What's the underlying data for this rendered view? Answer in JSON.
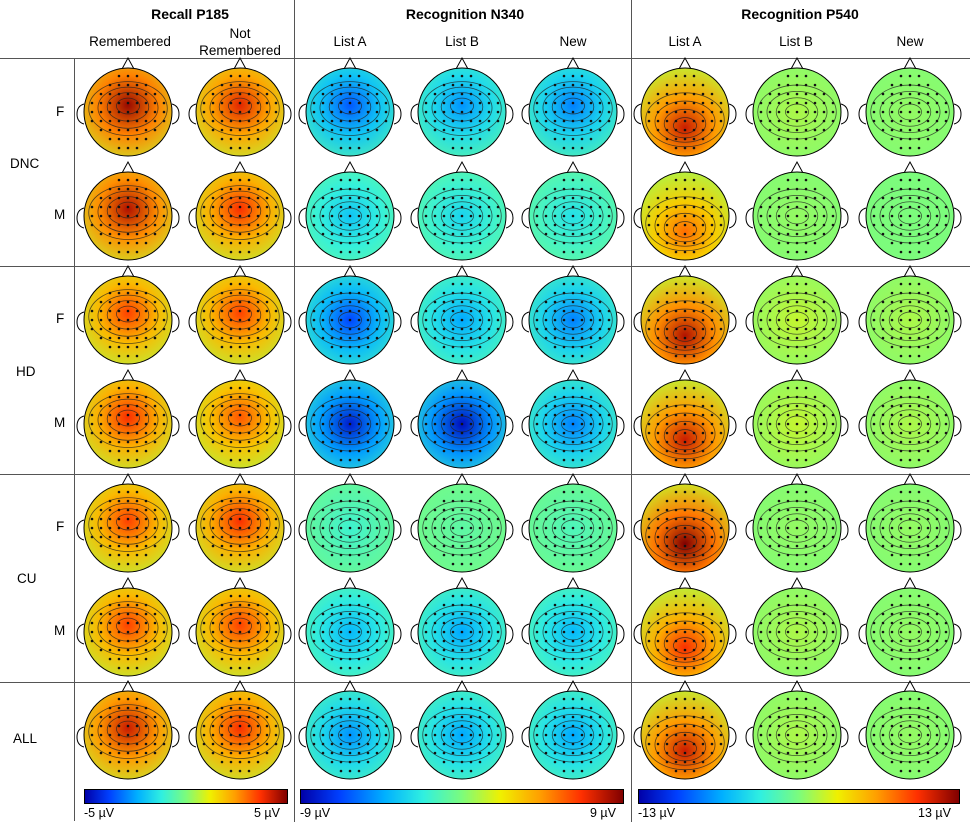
{
  "panels": [
    {
      "title": "Recall P185",
      "columns": [
        "Remembered",
        "Not\nRemembered"
      ],
      "colorbar": {
        "min_label": "-5 µV",
        "max_label": "5 µV",
        "min": -5,
        "max": 5
      }
    },
    {
      "title": "Recognition N340",
      "columns": [
        "List A",
        "List B",
        "New"
      ],
      "colorbar": {
        "min_label": "-9 µV",
        "max_label": "9 µV",
        "min": -9,
        "max": 9
      }
    },
    {
      "title": "Recognition P540",
      "columns": [
        "List A",
        "List B",
        "New"
      ],
      "colorbar": {
        "min_label": "-13 µV",
        "max_label": "13 µV",
        "min": -13,
        "max": 13
      }
    }
  ],
  "groups": [
    {
      "label": "DNC",
      "conditions": [
        "F",
        "M"
      ]
    },
    {
      "label": "HD",
      "conditions": [
        "F",
        "M"
      ]
    },
    {
      "label": "CU",
      "conditions": [
        "F",
        "M"
      ]
    },
    {
      "label": "ALL",
      "conditions": [
        ""
      ]
    }
  ],
  "maps": {
    "columns": [
      {
        "panel": 0,
        "name": "Remembered"
      },
      {
        "panel": 0,
        "name": "Not Remembered"
      },
      {
        "panel": 1,
        "name": "List A"
      },
      {
        "panel": 1,
        "name": "List B"
      },
      {
        "panel": 1,
        "name": "New"
      },
      {
        "panel": 2,
        "name": "List A"
      },
      {
        "panel": 2,
        "name": "List B"
      },
      {
        "panel": 2,
        "name": "New"
      }
    ],
    "rows": [
      {
        "group": "DNC",
        "condition": "F",
        "peak": [
          0.95,
          0.8,
          -0.7,
          -0.55,
          -0.6,
          0.85,
          0.1,
          0.05
        ],
        "focus": [
          "front",
          "front",
          "front",
          "front",
          "front",
          "back",
          "none",
          "none"
        ]
      },
      {
        "group": "DNC",
        "condition": "M",
        "peak": [
          0.9,
          0.75,
          -0.4,
          -0.35,
          -0.3,
          0.6,
          0.05,
          0.0
        ],
        "focus": [
          "front",
          "front",
          "center",
          "center",
          "center",
          "back",
          "none",
          "none"
        ]
      },
      {
        "group": "HD",
        "condition": "F",
        "peak": [
          0.7,
          0.7,
          -0.75,
          -0.5,
          -0.6,
          0.9,
          0.15,
          0.1
        ],
        "focus": [
          "front",
          "front",
          "center",
          "center",
          "center",
          "back",
          "none",
          "none"
        ]
      },
      {
        "group": "HD",
        "condition": "M",
        "peak": [
          0.75,
          0.65,
          -0.9,
          -0.95,
          -0.6,
          0.85,
          0.15,
          0.1
        ],
        "focus": [
          "front",
          "front",
          "center",
          "center",
          "center",
          "back",
          "none",
          "none"
        ]
      },
      {
        "group": "CU",
        "condition": "F",
        "peak": [
          0.7,
          0.75,
          -0.2,
          -0.1,
          -0.15,
          1.0,
          0.05,
          0.05
        ],
        "focus": [
          "front",
          "front",
          "center",
          "center",
          "center",
          "back",
          "none",
          "none"
        ]
      },
      {
        "group": "CU",
        "condition": "M",
        "peak": [
          0.7,
          0.7,
          -0.45,
          -0.5,
          -0.45,
          0.75,
          0.1,
          0.05
        ],
        "focus": [
          "front",
          "front",
          "center",
          "center",
          "center",
          "back",
          "none",
          "none"
        ]
      },
      {
        "group": "ALL",
        "condition": "",
        "peak": [
          0.85,
          0.75,
          -0.55,
          -0.5,
          -0.5,
          0.85,
          0.1,
          0.05
        ],
        "focus": [
          "front",
          "front",
          "center",
          "center",
          "center",
          "back",
          "none",
          "none"
        ]
      }
    ]
  }
}
